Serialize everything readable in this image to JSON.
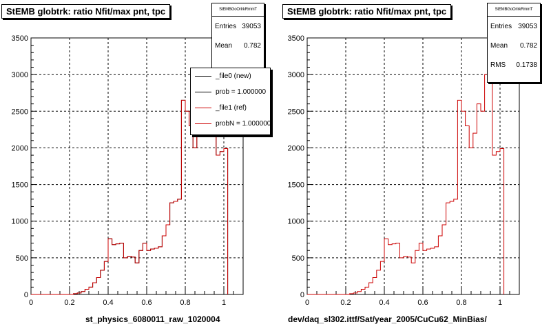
{
  "panels": [
    {
      "title": "StEMB globtrk: ratio Nfit/max pnt, tpc",
      "xlabel": "st_physics_6080011_raw_1020004",
      "stats": {
        "name": "StEMBGoOrIrkRmmT",
        "rows": [
          {
            "label": "Entries",
            "value": "39053"
          },
          {
            "label": "Mean",
            "value": "0.782"
          }
        ]
      },
      "legend": [
        {
          "text": "_file0 (new)",
          "color": "#000000"
        },
        {
          "text": "prob = 1.000000",
          "color": "#000000"
        },
        {
          "text": "_file1 (ref)",
          "color": "#cc0000"
        },
        {
          "text": "probN = 1.000000",
          "color": "#cc0000"
        }
      ]
    },
    {
      "title": "StEMB globtrk: ratio Nfit/max pnt, tpc",
      "xlabel": "dev/daq_sl302.ittf/Sat/year_2005/CuCu62_MinBias/",
      "stats": {
        "name": "StEMBGoOrIrkRmmT",
        "rows": [
          {
            "label": "Entries",
            "value": "39053"
          },
          {
            "label": "Mean",
            "value": "0.782"
          },
          {
            "label": "RMS",
            "value": "0.1738"
          }
        ]
      }
    }
  ],
  "chart_data": [
    {
      "type": "bar",
      "title": "StEMB globtrk: ratio Nfit/max pnt, tpc",
      "xlabel": "st_physics_6080011_raw_1020004",
      "xlim": [
        0,
        1.1
      ],
      "ylim": [
        0,
        3500
      ],
      "xticks": [
        "0",
        "0.2",
        "0.4",
        "0.6",
        "0.8",
        "1"
      ],
      "yticks": [
        "0",
        "500",
        "1000",
        "1500",
        "2000",
        "2500",
        "3000",
        "3500"
      ],
      "grid": true,
      "bin_width": 0.02,
      "bin_start": 0.0,
      "series": [
        {
          "name": "_file0 (new)",
          "color": "#000000",
          "values": [
            0,
            0,
            0,
            0,
            0,
            0,
            0,
            0,
            0,
            0,
            0,
            10,
            20,
            40,
            70,
            100,
            160,
            230,
            330,
            450,
            760,
            680,
            690,
            700,
            500,
            520,
            510,
            430,
            600,
            700,
            600,
            620,
            630,
            650,
            800,
            950,
            1250,
            1270,
            1300,
            2650,
            2500,
            2300,
            2000,
            2200,
            2600,
            2500,
            3000,
            3350,
            1900,
            1950,
            1990
          ]
        },
        {
          "name": "_file1 (ref)",
          "color": "#cc0000",
          "values": [
            0,
            0,
            0,
            0,
            0,
            0,
            0,
            0,
            0,
            0,
            0,
            10,
            20,
            40,
            70,
            100,
            160,
            230,
            330,
            450,
            760,
            680,
            690,
            700,
            500,
            520,
            510,
            430,
            600,
            700,
            600,
            620,
            630,
            650,
            800,
            950,
            1250,
            1270,
            1300,
            2650,
            2500,
            2300,
            2000,
            2200,
            2600,
            2500,
            3000,
            3350,
            1900,
            1950,
            1990
          ]
        }
      ]
    },
    {
      "type": "bar",
      "title": "StEMB globtrk: ratio Nfit/max pnt, tpc",
      "xlabel": "dev/daq_sl302.ittf/Sat/year_2005/CuCu62_MinBias/",
      "xlim": [
        0,
        1.1
      ],
      "ylim": [
        0,
        3500
      ],
      "xticks": [
        "0",
        "0.2",
        "0.4",
        "0.6",
        "0.8",
        "1"
      ],
      "yticks": [
        "0",
        "500",
        "1000",
        "1500",
        "2000",
        "2500",
        "3000",
        "3500"
      ],
      "grid": true,
      "bin_width": 0.02,
      "bin_start": 0.0,
      "series": [
        {
          "name": "_file1 (ref)",
          "color": "#cc0000",
          "values": [
            0,
            0,
            0,
            0,
            0,
            0,
            0,
            0,
            0,
            0,
            0,
            10,
            20,
            40,
            70,
            100,
            160,
            230,
            330,
            450,
            760,
            680,
            690,
            700,
            500,
            520,
            510,
            430,
            600,
            700,
            600,
            620,
            630,
            650,
            800,
            950,
            1250,
            1270,
            1300,
            2650,
            2500,
            2300,
            2000,
            2200,
            2600,
            2500,
            3000,
            3350,
            1900,
            1950,
            1990
          ]
        }
      ]
    }
  ]
}
